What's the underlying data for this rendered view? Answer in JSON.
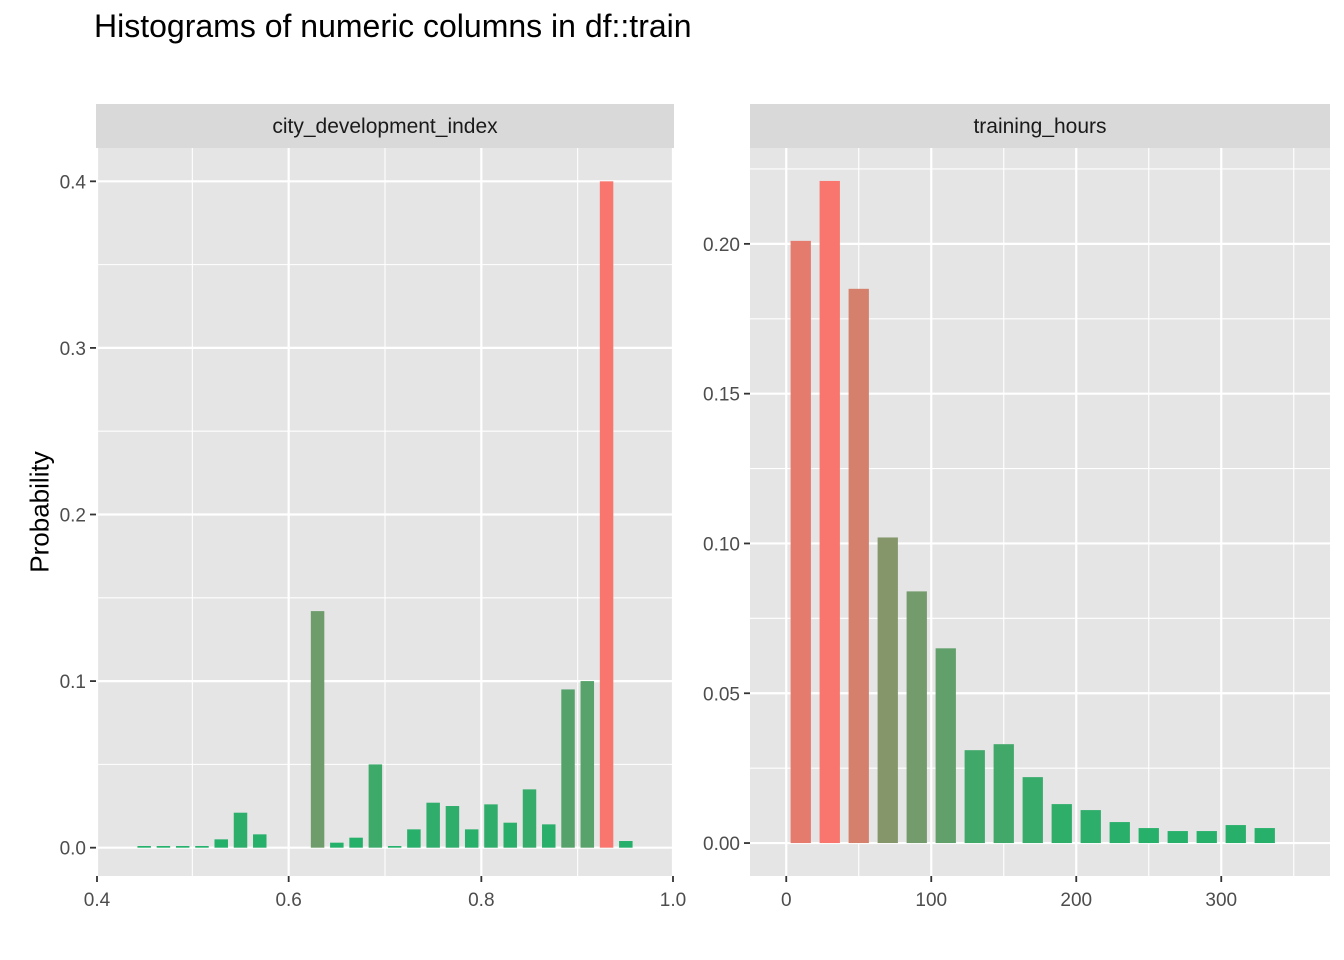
{
  "title": "Histograms of numeric columns in df::train",
  "ylabel": "Probability",
  "colors": {
    "high": "#F8766D",
    "low": "#22B16A",
    "panel_bg": "#E5E5E5",
    "strip_bg": "#D9D9D9",
    "grid": "#FFFFFF"
  },
  "chart_data": [
    {
      "type": "bar",
      "facet": "city_development_index",
      "xlim": [
        0.4,
        1.0
      ],
      "ylim": [
        -0.017,
        0.42
      ],
      "bar_width": 0.014,
      "x_ticks": [
        0.4,
        0.6,
        0.8,
        1.0
      ],
      "x_tick_labels": [
        "0.4",
        "0.6",
        "0.8",
        "1.0"
      ],
      "y_ticks": [
        0.0,
        0.1,
        0.2,
        0.3,
        0.4
      ],
      "y_tick_labels": [
        "0.0",
        "0.1",
        "0.2",
        "0.3",
        "0.4"
      ],
      "x": [
        0.45,
        0.47,
        0.49,
        0.51,
        0.53,
        0.55,
        0.57,
        0.59,
        0.61,
        0.63,
        0.65,
        0.67,
        0.69,
        0.71,
        0.73,
        0.75,
        0.77,
        0.79,
        0.81,
        0.83,
        0.85,
        0.87,
        0.89,
        0.91,
        0.93,
        0.95
      ],
      "values": [
        0.001,
        0.001,
        0.001,
        0.001,
        0.005,
        0.021,
        0.008,
        0,
        0,
        0.142,
        0.003,
        0.006,
        0.05,
        0.001,
        0.011,
        0.027,
        0.025,
        0.011,
        0.026,
        0.015,
        0.035,
        0.014,
        0.095,
        0.1,
        0.4,
        0.004
      ]
    },
    {
      "type": "bar",
      "facet": "training_hours",
      "xlim": [
        -25,
        375
      ],
      "ylim": [
        -0.011,
        0.232
      ],
      "bar_width": 14,
      "x_ticks": [
        0,
        100,
        200,
        300
      ],
      "x_tick_labels": [
        "0",
        "100",
        "200",
        "300"
      ],
      "y_ticks": [
        0.0,
        0.05,
        0.1,
        0.15,
        0.2
      ],
      "y_tick_labels": [
        "0.00",
        "0.05",
        "0.10",
        "0.15",
        "0.20"
      ],
      "x": [
        10,
        30,
        50,
        70,
        90,
        110,
        130,
        150,
        170,
        190,
        210,
        230,
        250,
        270,
        290,
        310,
        330
      ],
      "values": [
        0.201,
        0.221,
        0.185,
        0.102,
        0.084,
        0.065,
        0.031,
        0.033,
        0.022,
        0.013,
        0.011,
        0.007,
        0.005,
        0.004,
        0.004,
        0.006,
        0.005
      ]
    }
  ]
}
